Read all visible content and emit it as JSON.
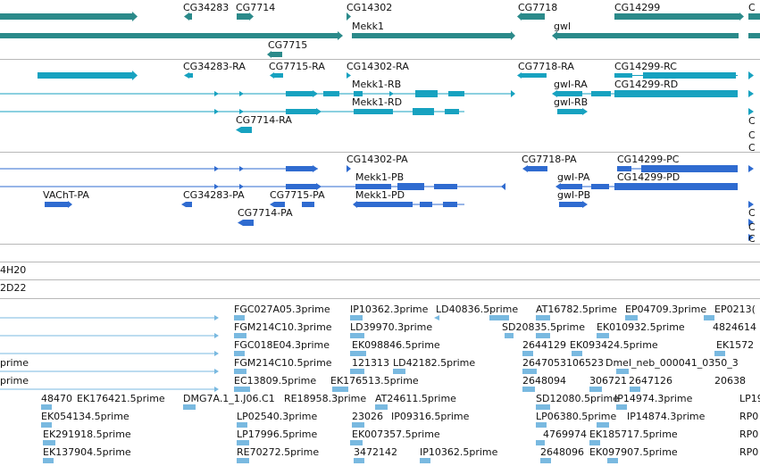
{
  "colors": {
    "gene": "#2b8a8a",
    "transcript": "#17a2c0",
    "protein": "#2f6bd0",
    "est": "#79b9e0",
    "divider": "#b8b8b8"
  },
  "genes": [
    "CG34283",
    "CG7714",
    "CG14302",
    "CG7718",
    "CG14299",
    "C",
    "Mekk1",
    "gwl",
    "CG7715"
  ],
  "transcripts": [
    "CG34283-RA",
    "CG7715-RA",
    "CG14302-RA",
    "CG7718-RA",
    "CG14299-RC",
    "Mekk1-RB",
    "gwl-RA",
    "CG14299-RD",
    "Mekk1-RD",
    "gwl-RB",
    "CG7714-RA",
    "C",
    "C",
    "C"
  ],
  "proteins": [
    "CG14302-PA",
    "CG7718-PA",
    "CG14299-PC",
    "Mekk1-PB",
    "gwl-PA",
    "CG14299-PD",
    "VAChT-PA",
    "CG34283-PA",
    "CG7715-PA",
    "Mekk1-PD",
    "gwl-PB",
    "CG7714-PA",
    "C",
    "C",
    "C"
  ],
  "tracks": [
    "4H20",
    "2D22"
  ],
  "est_left": [
    "prime",
    "prime"
  ],
  "ests": [
    [
      "FGC027A05.3prime",
      "IP10362.3prime",
      "LD40836.5prime",
      "AT16782.5prime",
      "EP04709.3prime",
      "EP0213("
    ],
    [
      "FGM214C10.3prime",
      "LD39970.3prime",
      "SD20835.5prime",
      "EK010932.5prime",
      "4824614"
    ],
    [
      "FGC018E04.3prime",
      "EK098846.5prime",
      "2644129",
      "EK093424.5prime",
      "EK1572"
    ],
    [
      "FGM214C10.5prime",
      "121313",
      "LD42182.5prime",
      "2647053",
      "106523",
      "Dmel_neb_000041_0350_3"
    ],
    [
      "EC13809.5prime",
      "EK176513.5prime",
      "2648094",
      "306721",
      "2647126",
      "20638"
    ],
    [
      "48470",
      "EK176421.5prime",
      "DMG7A.1_1.J06.C1",
      "RE18958.3prime",
      "AT24611.5prime",
      "SD12080.5prime",
      "IP14974.3prime",
      "LP19"
    ],
    [
      "EK054134.5prime",
      "LP02540.3prime",
      "23026",
      "IP09316.5prime",
      "LP06380.5prime",
      "IP14874.3prime",
      "RP0"
    ],
    [
      "EK291918.5prime",
      "LP17996.5prime",
      "EK007357.5prime",
      "4769974",
      "EK185717.5prime",
      "RP0"
    ],
    [
      "EK137904.5prime",
      "RE70272.5prime",
      "3472142",
      "IP10362.5prime",
      "2648096",
      "EK097907.5prime",
      "RP0"
    ]
  ]
}
